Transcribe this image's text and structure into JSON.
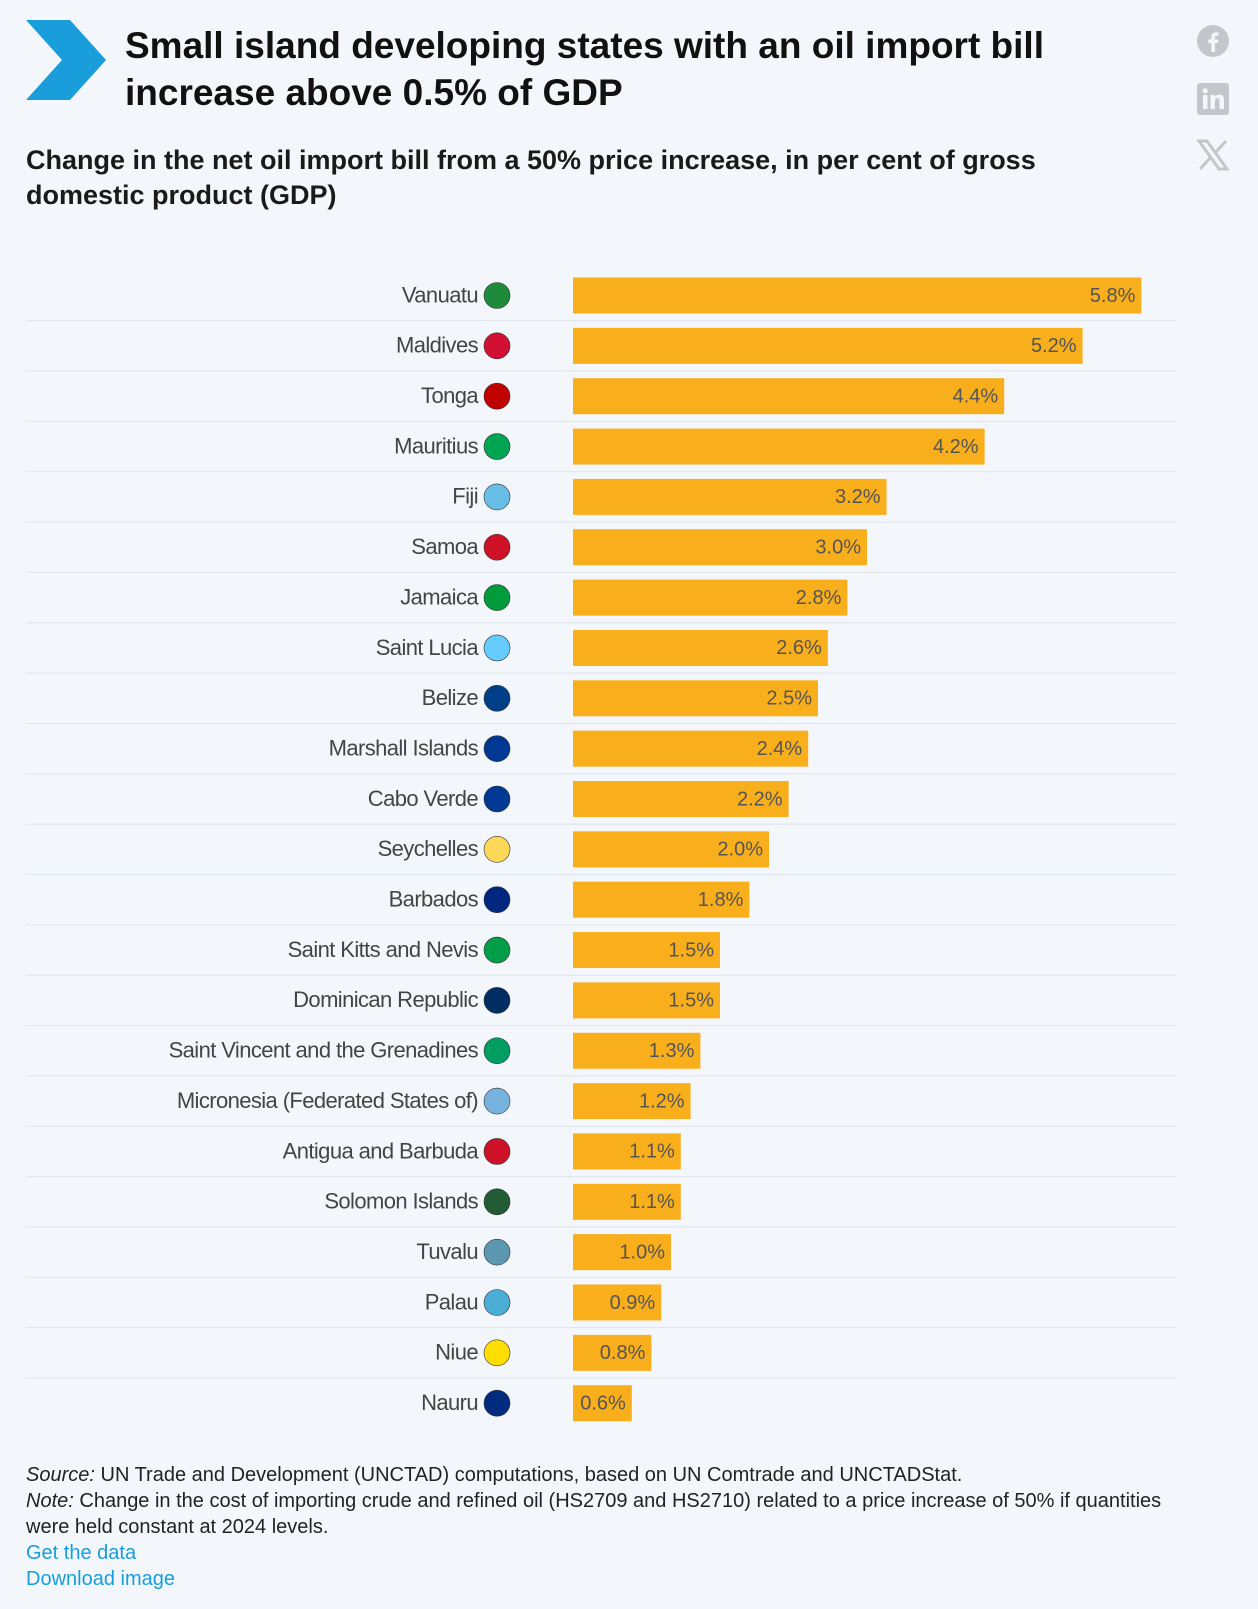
{
  "chart_data": {
    "type": "bar",
    "title": "Small island developing states with an oil import bill increase above 0.5% of GDP",
    "subtitle": "Change in the net oil import bill from a 50% price increase, in per cent of gross domestic product (GDP)",
    "categories": [
      "Vanuatu",
      "Maldives",
      "Tonga",
      "Mauritius",
      "Fiji",
      "Samoa",
      "Jamaica",
      "Saint Lucia",
      "Belize",
      "Marshall Islands",
      "Cabo Verde",
      "Seychelles",
      "Barbados",
      "Saint Kitts and Nevis",
      "Dominican Republic",
      "Saint Vincent and the Grenadines",
      "Micronesia (Federated States of)",
      "Antigua and Barbuda",
      "Solomon Islands",
      "Tuvalu",
      "Palau",
      "Niue",
      "Nauru"
    ],
    "values": [
      5.8,
      5.2,
      4.4,
      4.2,
      3.2,
      3.0,
      2.8,
      2.6,
      2.5,
      2.4,
      2.2,
      2.0,
      1.8,
      1.5,
      1.5,
      1.3,
      1.2,
      1.1,
      1.1,
      1.0,
      0.9,
      0.8,
      0.6
    ],
    "value_labels": [
      "5.8%",
      "5.2%",
      "4.4%",
      "4.2%",
      "3.2%",
      "3.0%",
      "2.8%",
      "2.6%",
      "2.5%",
      "2.4%",
      "2.2%",
      "2.0%",
      "1.8%",
      "1.5%",
      "1.5%",
      "1.3%",
      "1.2%",
      "1.1%",
      "1.1%",
      "1.0%",
      "0.9%",
      "0.8%",
      "0.6%"
    ],
    "color": "#f9ae1b"
  },
  "footer": {
    "source_label": "Source:",
    "source": "UN Trade and Development (UNCTAD) computations, based on UN Comtrade and UNCTADStat.",
    "note_label": "Note:",
    "note": "Change in the cost of importing crude and refined oil (HS2709 and HS2710) related to a price increase of 50% if quantities were held constant at 2024 levels.",
    "links": [
      "Get the data",
      "Download image"
    ]
  }
}
